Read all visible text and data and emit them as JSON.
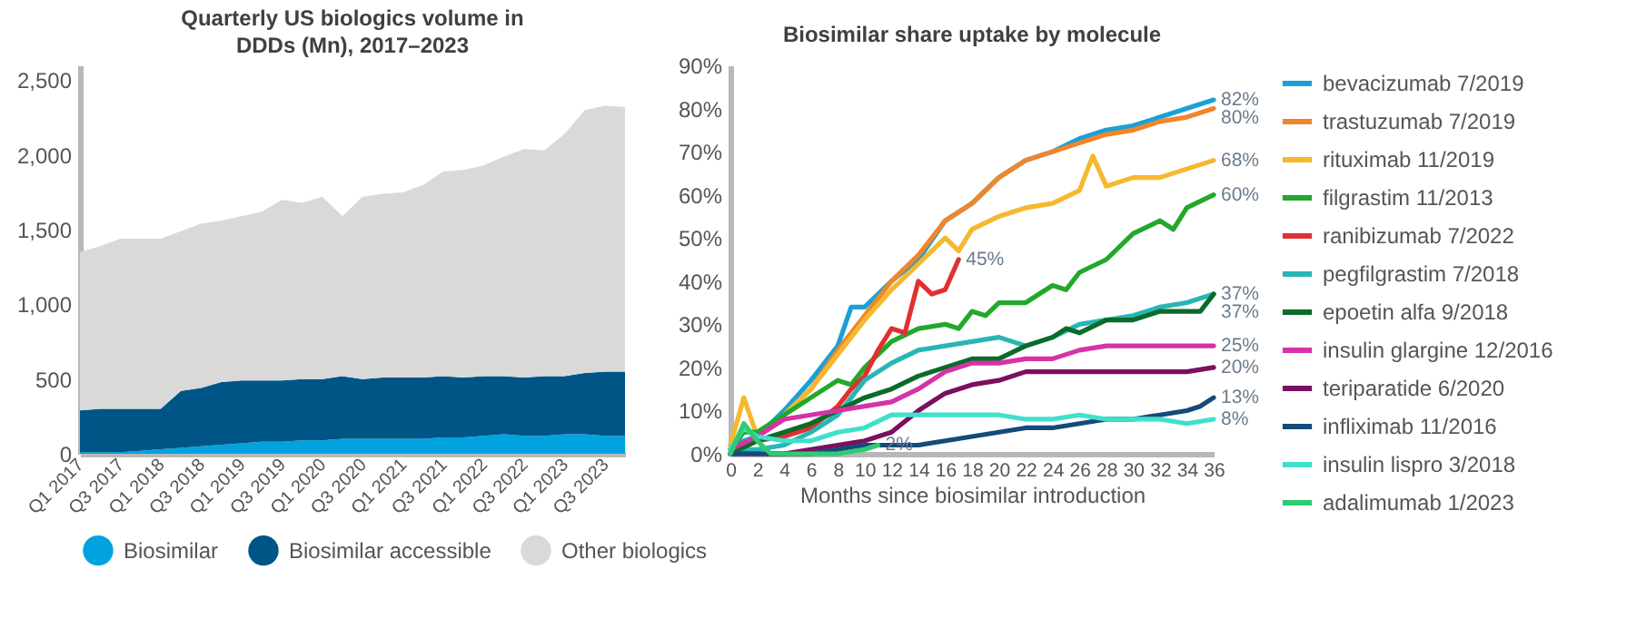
{
  "chart_data": [
    {
      "type": "area",
      "title": "Quarterly US biologics volume in DDDs (Mn), 2017–2023",
      "stacked": true,
      "legend": "bottom",
      "categories": [
        "Q1 2017",
        null,
        "Q3 2017",
        null,
        "Q1 2018",
        null,
        "Q3 2018",
        null,
        "Q1 2019",
        null,
        "Q3 2019",
        null,
        "Q1 2020",
        null,
        "Q3 2020",
        null,
        "Q1 2021",
        null,
        "Q3 2021",
        null,
        "Q1 2022",
        null,
        "Q3 2022",
        null,
        "Q1 2023",
        null,
        "Q3 2023",
        null
      ],
      "ylim": [
        0,
        2600
      ],
      "yticks": [
        0,
        {
          "value": 500,
          "label": "500"
        },
        {
          "value": 1000,
          "label": "1,000"
        },
        {
          "value": 1500,
          "label": "1,500"
        },
        {
          "value": 2000,
          "label": "2,000"
        },
        {
          "value": 2500,
          "label": "2,500"
        }
      ],
      "series": [
        {
          "name": "Biosimilar",
          "color": "#00a3e0",
          "values": [
            10,
            10,
            10,
            20,
            30,
            40,
            50,
            60,
            70,
            80,
            80,
            90,
            90,
            100,
            100,
            100,
            100,
            100,
            110,
            110,
            120,
            130,
            120,
            120,
            130,
            130,
            120,
            120
          ]
        },
        {
          "name": "Biosimilar accessible",
          "color": "#005587",
          "values": [
            280,
            290,
            290,
            280,
            270,
            380,
            390,
            420,
            420,
            410,
            410,
            410,
            410,
            420,
            400,
            410,
            410,
            410,
            410,
            400,
            400,
            390,
            390,
            400,
            390,
            410,
            430,
            430
          ]
        },
        {
          "name": "Other biologics",
          "color": "#d9d9d9",
          "values": [
            1060,
            1090,
            1140,
            1140,
            1140,
            1070,
            1100,
            1080,
            1100,
            1130,
            1210,
            1180,
            1220,
            1070,
            1220,
            1230,
            1240,
            1290,
            1370,
            1390,
            1410,
            1470,
            1530,
            1510,
            1620,
            1760,
            1780,
            1770
          ]
        }
      ]
    },
    {
      "type": "line",
      "title": "Biosimilar share uptake by molecule",
      "xlabel": "Months since biosimilar introduction",
      "legend": "right",
      "xlim": [
        0,
        36
      ],
      "xticks": [
        0,
        2,
        4,
        6,
        8,
        10,
        12,
        14,
        16,
        18,
        20,
        22,
        24,
        26,
        28,
        30,
        32,
        34,
        36
      ],
      "ylim": [
        0,
        90
      ],
      "yticks": [
        {
          "value": 0,
          "label": "0%"
        },
        {
          "value": 10,
          "label": "10%"
        },
        {
          "value": 20,
          "label": "20%"
        },
        {
          "value": 30,
          "label": "30%"
        },
        {
          "value": 40,
          "label": "40%"
        },
        {
          "value": 50,
          "label": "50%"
        },
        {
          "value": 60,
          "label": "60%"
        },
        {
          "value": 70,
          "label": "70%"
        },
        {
          "value": 80,
          "label": "80%"
        },
        {
          "value": 90,
          "label": "90%"
        }
      ],
      "series": [
        {
          "name": "bevacizumab 7/2019",
          "color": "#1aa0d8",
          "x": [
            0,
            2,
            4,
            6,
            8,
            9,
            10,
            12,
            14,
            16,
            18,
            20,
            22,
            24,
            26,
            28,
            30,
            32,
            34,
            35,
            36
          ],
          "values": [
            2,
            4,
            10,
            17,
            25,
            34,
            34,
            40,
            45,
            54,
            58,
            64,
            68,
            70,
            73,
            75,
            76,
            78,
            80,
            81,
            82
          ],
          "value_labels": [
            null,
            null,
            null,
            null,
            null,
            null,
            null,
            null,
            null,
            null,
            null,
            null,
            null,
            null,
            null,
            null,
            null,
            null,
            null,
            null,
            "82%"
          ]
        },
        {
          "name": "trastuzumab 7/2019",
          "color": "#f0862a",
          "x": [
            0,
            2,
            4,
            6,
            8,
            10,
            12,
            14,
            16,
            18,
            20,
            22,
            24,
            26,
            28,
            30,
            32,
            34,
            36
          ],
          "values": [
            1,
            4,
            9,
            15,
            24,
            32,
            40,
            46,
            54,
            58,
            64,
            68,
            70,
            72,
            74,
            75,
            77,
            78,
            80
          ],
          "value_labels": [
            null,
            null,
            null,
            null,
            null,
            null,
            null,
            null,
            null,
            null,
            null,
            null,
            null,
            null,
            null,
            null,
            null,
            null,
            "80%"
          ]
        },
        {
          "name": "rituximab 11/2019",
          "color": "#f5b82e",
          "x": [
            0,
            1,
            2,
            4,
            6,
            8,
            10,
            12,
            14,
            16,
            17,
            18,
            20,
            22,
            24,
            26,
            27,
            28,
            30,
            32,
            34,
            36
          ],
          "values": [
            2,
            13,
            4,
            9,
            15,
            23,
            31,
            38,
            44,
            50,
            47,
            52,
            55,
            57,
            58,
            61,
            69,
            62,
            64,
            64,
            66,
            68
          ],
          "value_labels": [
            null,
            null,
            null,
            null,
            null,
            null,
            null,
            null,
            null,
            null,
            null,
            null,
            null,
            null,
            null,
            null,
            null,
            null,
            null,
            null,
            null,
            "68%"
          ]
        },
        {
          "name": "filgrastim 11/2013",
          "color": "#22a82a",
          "x": [
            0,
            1,
            2,
            4,
            6,
            8,
            9,
            10,
            12,
            14,
            16,
            17,
            18,
            19,
            20,
            22,
            24,
            25,
            26,
            28,
            30,
            32,
            33,
            34,
            36
          ],
          "values": [
            1,
            5,
            5,
            9,
            13,
            17,
            16,
            20,
            26,
            29,
            30,
            29,
            33,
            32,
            35,
            35,
            39,
            38,
            42,
            45,
            51,
            54,
            52,
            57,
            60
          ],
          "value_labels": [
            null,
            null,
            null,
            null,
            null,
            null,
            null,
            null,
            null,
            null,
            null,
            null,
            null,
            null,
            null,
            null,
            null,
            null,
            null,
            null,
            null,
            null,
            null,
            null,
            "60%"
          ]
        },
        {
          "name": "ranibizumab 7/2022",
          "color": "#e03030",
          "x": [
            0,
            2,
            4,
            6,
            8,
            9,
            10,
            11,
            12,
            13,
            14,
            15,
            16,
            17
          ],
          "values": [
            0,
            3,
            4,
            6,
            11,
            15,
            18,
            24,
            29,
            28,
            40,
            37,
            38,
            45
          ],
          "value_labels": [
            null,
            null,
            null,
            null,
            null,
            null,
            null,
            null,
            null,
            null,
            null,
            null,
            null,
            "45%"
          ]
        },
        {
          "name": "pegfilgrastim 7/2018",
          "color": "#2ab5b5",
          "x": [
            0,
            2,
            4,
            6,
            8,
            10,
            12,
            14,
            16,
            18,
            20,
            22,
            24,
            26,
            28,
            30,
            32,
            34,
            36
          ],
          "values": [
            1,
            1,
            2,
            5,
            9,
            17,
            21,
            24,
            25,
            26,
            27,
            25,
            27,
            30,
            31,
            32,
            34,
            35,
            37
          ],
          "value_labels": [
            null,
            null,
            null,
            null,
            null,
            null,
            null,
            null,
            null,
            null,
            null,
            null,
            null,
            null,
            null,
            null,
            null,
            null,
            "37%"
          ]
        },
        {
          "name": "epoetin alfa 9/2018",
          "color": "#0a6b2a",
          "x": [
            0,
            2,
            4,
            6,
            8,
            10,
            12,
            14,
            16,
            18,
            20,
            22,
            24,
            25,
            26,
            28,
            30,
            32,
            34,
            35,
            36
          ],
          "values": [
            0,
            3,
            5,
            7,
            10,
            13,
            15,
            18,
            20,
            22,
            22,
            25,
            27,
            29,
            28,
            31,
            31,
            33,
            33,
            33,
            37
          ],
          "value_labels": [
            null,
            null,
            null,
            null,
            null,
            null,
            null,
            null,
            null,
            null,
            null,
            null,
            null,
            null,
            null,
            null,
            null,
            null,
            null,
            null,
            "37%"
          ]
        },
        {
          "name": "insulin glargine 12/2016",
          "color": "#d633a8",
          "x": [
            0,
            2,
            4,
            6,
            8,
            10,
            12,
            14,
            16,
            18,
            20,
            22,
            24,
            26,
            28,
            30,
            32,
            34,
            36
          ],
          "values": [
            1,
            4,
            8,
            9,
            10,
            11,
            12,
            15,
            19,
            21,
            21,
            22,
            22,
            24,
            25,
            25,
            25,
            25,
            25
          ],
          "value_labels": [
            null,
            null,
            null,
            null,
            null,
            null,
            null,
            null,
            null,
            null,
            null,
            null,
            null,
            null,
            null,
            null,
            null,
            null,
            "25%"
          ]
        },
        {
          "name": "teriparatide 6/2020",
          "color": "#7a1060",
          "x": [
            0,
            2,
            4,
            6,
            8,
            10,
            12,
            14,
            16,
            18,
            20,
            22,
            24,
            26,
            28,
            30,
            32,
            34,
            36
          ],
          "values": [
            0,
            0,
            0,
            1,
            2,
            3,
            5,
            10,
            14,
            16,
            17,
            19,
            19,
            19,
            19,
            19,
            19,
            19,
            20
          ],
          "value_labels": [
            null,
            null,
            null,
            null,
            null,
            null,
            null,
            null,
            null,
            null,
            null,
            null,
            null,
            null,
            null,
            null,
            null,
            null,
            "20%"
          ]
        },
        {
          "name": "infliximab 11/2016",
          "color": "#154a7a",
          "x": [
            0,
            4,
            6,
            8,
            10,
            12,
            14,
            16,
            18,
            20,
            22,
            24,
            26,
            28,
            30,
            32,
            34,
            35,
            36
          ],
          "values": [
            0,
            0,
            0,
            1,
            2,
            2,
            2,
            3,
            4,
            5,
            6,
            6,
            7,
            8,
            8,
            9,
            10,
            11,
            13
          ],
          "value_labels": [
            null,
            null,
            null,
            null,
            null,
            null,
            null,
            null,
            null,
            null,
            null,
            null,
            null,
            null,
            null,
            null,
            null,
            null,
            "13%"
          ]
        },
        {
          "name": "insulin lispro 3/2018",
          "color": "#3fe0cc",
          "x": [
            0,
            1,
            2,
            4,
            6,
            8,
            10,
            12,
            14,
            16,
            18,
            20,
            22,
            24,
            26,
            28,
            30,
            32,
            34,
            36
          ],
          "values": [
            1,
            6,
            4,
            3,
            3,
            5,
            6,
            9,
            9,
            9,
            9,
            9,
            8,
            8,
            9,
            8,
            8,
            8,
            7,
            8
          ],
          "value_labels": [
            null,
            null,
            null,
            null,
            null,
            null,
            null,
            null,
            null,
            null,
            null,
            null,
            null,
            null,
            null,
            null,
            null,
            null,
            null,
            "8%"
          ]
        },
        {
          "name": "adalimumab 1/2023",
          "color": "#2ecc71",
          "x": [
            0,
            1,
            2,
            3,
            4,
            6,
            8,
            10,
            11
          ],
          "values": [
            0,
            7,
            3,
            0,
            0,
            0,
            0,
            1,
            2
          ],
          "value_labels": [
            null,
            null,
            null,
            null,
            null,
            null,
            null,
            null,
            "2%"
          ]
        }
      ]
    }
  ]
}
